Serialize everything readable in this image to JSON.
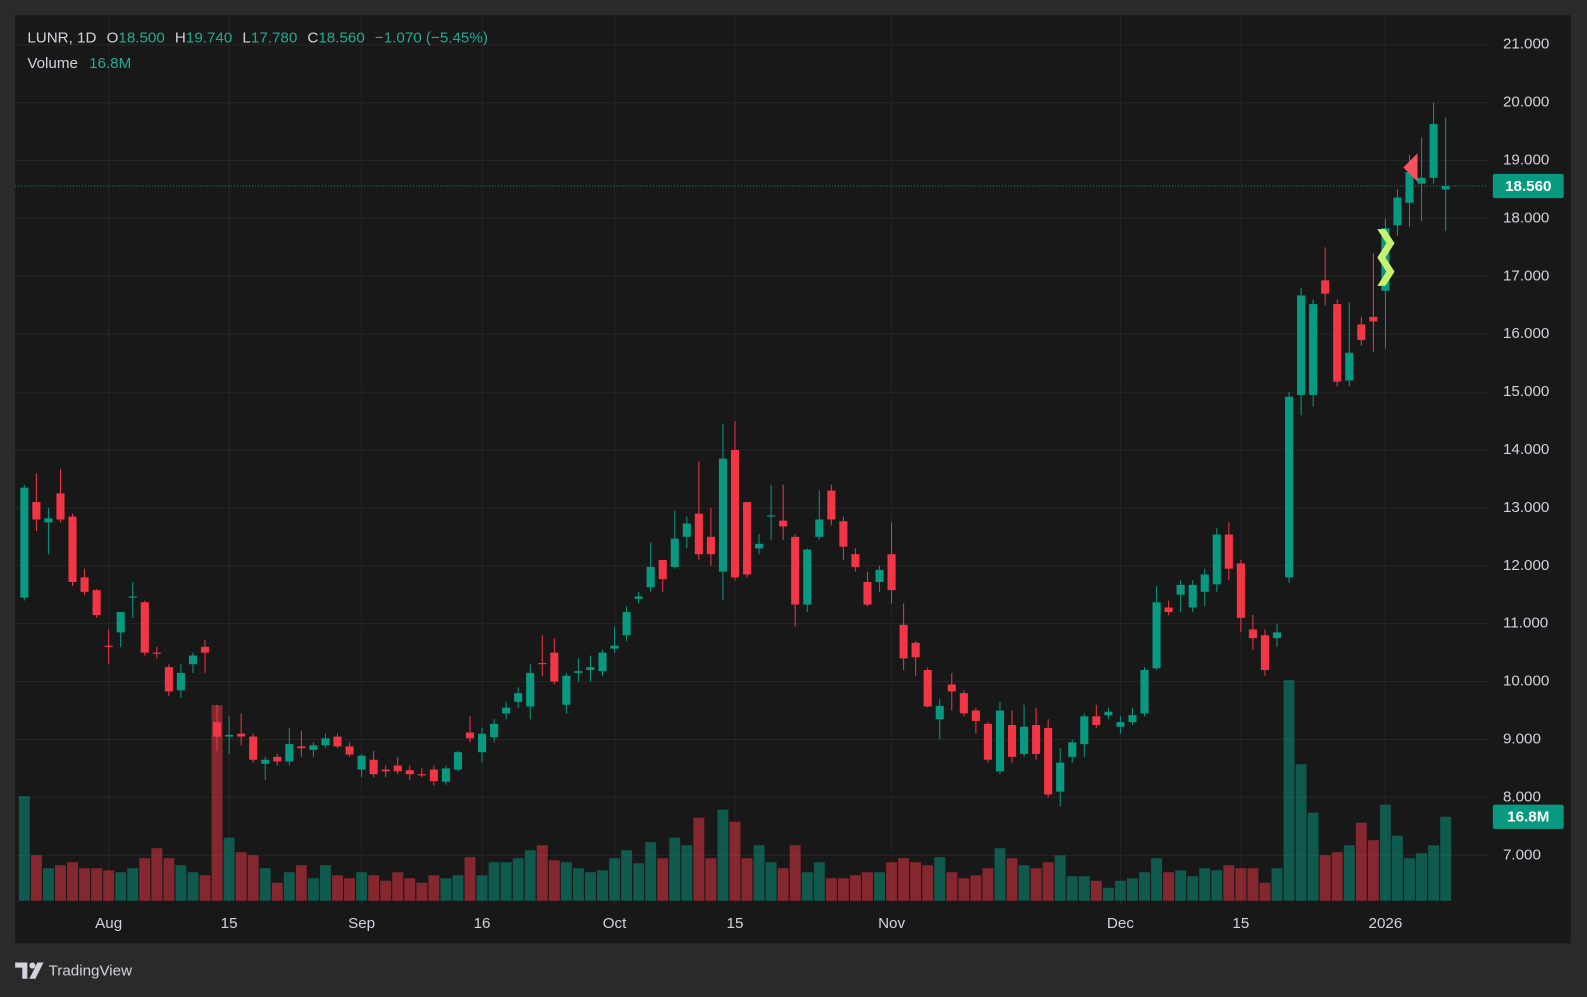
{
  "header": {
    "symbol": "LUNR, 1D",
    "open_key": "O",
    "open": "18.500",
    "high_key": "H",
    "high": "19.740",
    "low_key": "L",
    "low": "17.780",
    "close_key": "C",
    "close": "18.560",
    "change": "−1.070 (−5.45%)",
    "volume_key": "Volume",
    "volume": "16.8M"
  },
  "footer": {
    "brand": "TradingView"
  },
  "chart_data": {
    "type": "candlestick",
    "up_color": "#089981",
    "down_color": "#f23645",
    "volume_up_color": "rgba(8,153,129,0.5)",
    "volume_down_color": "rgba(242,54,69,0.5)",
    "last_price_label": "18.560",
    "last_volume_label": "16.8M",
    "xlim": [
      -0.76,
      121.5
    ],
    "ylim": [
      5.48,
      21.51
    ],
    "vlim": [
      0,
      44.5
    ],
    "grid": true,
    "xticks": [
      {
        "value": 7,
        "label": "Aug"
      },
      {
        "value": 17,
        "label": "15"
      },
      {
        "value": 28,
        "label": "Sep"
      },
      {
        "value": 38,
        "label": "16"
      },
      {
        "value": 49,
        "label": "Oct"
      },
      {
        "value": 59,
        "label": "15"
      },
      {
        "value": 72,
        "label": "Nov"
      },
      {
        "value": 91,
        "label": "Dec"
      },
      {
        "value": 101,
        "label": "15"
      },
      {
        "value": 113,
        "label": "2026"
      }
    ],
    "yticks": [
      {
        "value": 7,
        "label": "7.000"
      },
      {
        "value": 8,
        "label": "8.000"
      },
      {
        "value": 9,
        "label": "9.000"
      },
      {
        "value": 10,
        "label": "10.000"
      },
      {
        "value": 11,
        "label": "11.000"
      },
      {
        "value": 12,
        "label": "12.000"
      },
      {
        "value": 13,
        "label": "13.000"
      },
      {
        "value": 14,
        "label": "14.000"
      },
      {
        "value": 15,
        "label": "15.000"
      },
      {
        "value": 16,
        "label": "16.000"
      },
      {
        "value": 17,
        "label": "17.000"
      },
      {
        "value": 18,
        "label": "18.000"
      },
      {
        "value": 19,
        "label": "19.000"
      },
      {
        "value": 20,
        "label": "20.000"
      },
      {
        "value": 21,
        "label": "21.000"
      }
    ],
    "open": [
      11.45,
      13.1,
      12.75,
      13.25,
      12.85,
      11.8,
      11.58,
      10.62,
      10.85,
      11.45,
      11.37,
      10.5,
      10.25,
      9.85,
      10.3,
      10.6,
      9.3,
      9.05,
      9.1,
      9.05,
      8.58,
      8.7,
      8.62,
      8.88,
      8.82,
      8.9,
      9.05,
      8.88,
      8.48,
      8.65,
      8.48,
      8.55,
      8.47,
      8.4,
      8.48,
      8.27,
      8.48,
      9.12,
      8.78,
      9.04,
      9.45,
      9.65,
      9.57,
      10.32,
      10.5,
      9.6,
      10.15,
      10.2,
      10.18,
      10.57,
      10.8,
      11.43,
      11.63,
      12.1,
      11.98,
      12.5,
      12.9,
      12.5,
      11.9,
      14.0,
      13.1,
      12.3,
      12.85,
      12.78,
      12.5,
      11.33,
      12.5,
      13.3,
      12.77,
      12.2,
      11.72,
      11.72,
      12.2,
      10.98,
      10.67,
      10.2,
      9.35,
      9.95,
      9.8,
      9.5,
      9.27,
      8.45,
      9.25,
      8.75,
      9.25,
      9.2,
      8.1,
      8.7,
      8.92,
      9.4,
      9.42,
      9.22,
      9.3,
      9.45,
      10.23,
      11.28,
      11.5,
      11.28,
      11.55,
      11.68,
      12.54,
      12.04,
      10.9,
      10.8,
      10.75,
      11.8,
      14.95,
      14.95,
      16.93,
      16.52,
      15.2,
      16.17,
      16.3,
      16.75,
      17.88,
      18.27,
      18.6,
      18.7,
      18.5
    ],
    "high": [
      13.4,
      13.6,
      13.0,
      13.67,
      12.9,
      11.95,
      11.6,
      10.9,
      11.2,
      11.72,
      11.4,
      10.6,
      10.3,
      10.3,
      10.5,
      10.72,
      9.6,
      9.4,
      9.45,
      9.1,
      8.7,
      8.75,
      9.2,
      9.15,
      8.95,
      9.1,
      9.1,
      8.95,
      8.75,
      8.8,
      8.55,
      8.7,
      8.55,
      8.5,
      8.55,
      8.55,
      8.8,
      9.4,
      9.2,
      9.35,
      9.65,
      9.9,
      10.3,
      10.8,
      10.75,
      10.15,
      10.4,
      10.45,
      10.55,
      10.95,
      11.3,
      11.55,
      12.4,
      12.1,
      12.95,
      12.85,
      13.8,
      13.0,
      14.45,
      14.5,
      13.1,
      12.55,
      13.4,
      13.4,
      12.55,
      12.3,
      13.3,
      13.4,
      12.85,
      12.3,
      11.9,
      12.0,
      12.75,
      11.35,
      10.7,
      10.25,
      9.7,
      10.15,
      9.85,
      9.55,
      9.3,
      9.65,
      9.5,
      9.6,
      9.55,
      9.35,
      8.85,
      9.0,
      9.45,
      9.6,
      9.55,
      9.4,
      9.55,
      10.25,
      11.65,
      11.4,
      11.75,
      11.75,
      11.95,
      12.65,
      12.75,
      12.1,
      11.15,
      10.9,
      11.0,
      15.0,
      16.8,
      16.6,
      17.5,
      16.6,
      16.55,
      16.3,
      17.4,
      18.0,
      18.5,
      19.1,
      19.4,
      20.0,
      19.74
    ],
    "low": [
      11.4,
      12.6,
      12.2,
      12.75,
      11.65,
      11.5,
      11.1,
      10.3,
      10.6,
      11.1,
      10.45,
      10.4,
      9.75,
      9.72,
      10.15,
      10.15,
      8.8,
      8.75,
      8.9,
      8.6,
      8.3,
      8.55,
      8.55,
      8.7,
      8.7,
      8.85,
      8.85,
      8.7,
      8.35,
      8.35,
      8.35,
      8.4,
      8.3,
      8.35,
      8.2,
      8.22,
      8.45,
      8.95,
      8.6,
      8.95,
      9.35,
      9.55,
      9.35,
      10.1,
      9.95,
      9.45,
      10.0,
      10.0,
      10.1,
      10.5,
      10.7,
      11.35,
      11.55,
      11.55,
      11.95,
      12.3,
      12.1,
      12.0,
      11.4,
      11.75,
      11.8,
      12.2,
      12.45,
      12.45,
      10.95,
      11.2,
      12.45,
      12.7,
      12.1,
      11.9,
      11.3,
      11.55,
      11.35,
      10.2,
      10.1,
      9.55,
      9.0,
      9.5,
      9.4,
      9.1,
      8.6,
      8.4,
      8.6,
      8.7,
      8.65,
      8.0,
      7.85,
      8.6,
      8.7,
      9.2,
      9.35,
      9.1,
      9.25,
      9.4,
      10.2,
      11.15,
      11.2,
      11.2,
      11.3,
      11.55,
      11.75,
      10.85,
      10.55,
      10.1,
      10.6,
      11.7,
      14.6,
      14.75,
      16.5,
      15.1,
      15.1,
      15.8,
      15.7,
      15.75,
      17.7,
      17.85,
      17.95,
      18.6,
      17.78
    ],
    "close": [
      13.35,
      12.8,
      12.82,
      12.8,
      11.72,
      11.55,
      11.15,
      10.6,
      11.2,
      11.47,
      10.5,
      10.48,
      9.83,
      10.15,
      10.45,
      10.5,
      9.05,
      9.08,
      9.05,
      8.65,
      8.65,
      8.62,
      8.92,
      8.85,
      8.9,
      9.02,
      8.88,
      8.74,
      8.72,
      8.4,
      8.45,
      8.45,
      8.4,
      8.38,
      8.28,
      8.5,
      8.78,
      9.02,
      9.1,
      9.27,
      9.55,
      9.8,
      10.15,
      10.3,
      10.0,
      10.1,
      10.18,
      10.25,
      10.5,
      10.62,
      11.2,
      11.47,
      11.98,
      11.77,
      12.47,
      12.73,
      12.2,
      12.2,
      13.85,
      11.8,
      11.85,
      12.38,
      12.87,
      12.68,
      11.33,
      12.28,
      12.8,
      12.8,
      12.33,
      11.98,
      11.33,
      11.93,
      11.58,
      10.4,
      10.42,
      9.57,
      9.58,
      9.83,
      9.45,
      9.32,
      8.65,
      9.5,
      8.7,
      9.22,
      8.75,
      8.05,
      8.6,
      8.95,
      9.4,
      9.25,
      9.48,
      9.3,
      9.42,
      10.2,
      11.37,
      11.2,
      11.67,
      11.67,
      11.85,
      12.54,
      11.95,
      11.1,
      10.75,
      10.2,
      10.85,
      14.92,
      16.67,
      16.52,
      16.7,
      15.18,
      15.68,
      15.9,
      16.22,
      17.83,
      18.36,
      18.8,
      18.7,
      19.63,
      18.56
    ],
    "volume": [
      20.9,
      9.1,
      6.5,
      7.1,
      7.7,
      6.5,
      6.5,
      6.1,
      5.7,
      6.5,
      8.5,
      10.5,
      8.5,
      7.1,
      5.7,
      5.1,
      39.1,
      12.6,
      9.7,
      9.1,
      6.5,
      3.6,
      5.7,
      7.1,
      4.5,
      7.1,
      5.1,
      4.5,
      5.7,
      5.1,
      4.0,
      5.7,
      4.5,
      3.6,
      5.1,
      4.5,
      5.1,
      8.7,
      5.1,
      7.7,
      7.7,
      8.5,
      10.1,
      11.1,
      8.1,
      7.7,
      6.5,
      5.7,
      6.1,
      8.5,
      10.1,
      7.5,
      11.7,
      8.5,
      12.6,
      11.1,
      16.6,
      8.5,
      18.2,
      15.8,
      8.5,
      11.1,
      7.7,
      6.5,
      11.1,
      5.7,
      7.7,
      4.5,
      4.5,
      5.1,
      5.7,
      5.7,
      7.7,
      8.5,
      7.7,
      7.1,
      8.7,
      5.7,
      4.5,
      5.1,
      6.5,
      10.5,
      8.5,
      7.1,
      6.5,
      7.7,
      9.1,
      4.9,
      4.9,
      4.0,
      2.6,
      4.0,
      4.5,
      5.7,
      8.5,
      5.7,
      6.1,
      4.9,
      6.5,
      6.1,
      7.1,
      6.5,
      6.5,
      3.6,
      6.5,
      44.1,
      27.3,
      17.6,
      9.1,
      9.7,
      11.1,
      15.6,
      12.1,
      19.2,
      13.0,
      8.5,
      9.5,
      11.1,
      16.8
    ],
    "signals": [
      {
        "index": 113,
        "price": 17.57,
        "shape": "right",
        "color": "#c6f36e"
      },
      {
        "index": 113,
        "price": 17.08,
        "shape": "right",
        "color": "#c6f36e"
      },
      {
        "index": 116,
        "price": 18.88,
        "shape": "left",
        "color": "#f7525f"
      }
    ]
  }
}
